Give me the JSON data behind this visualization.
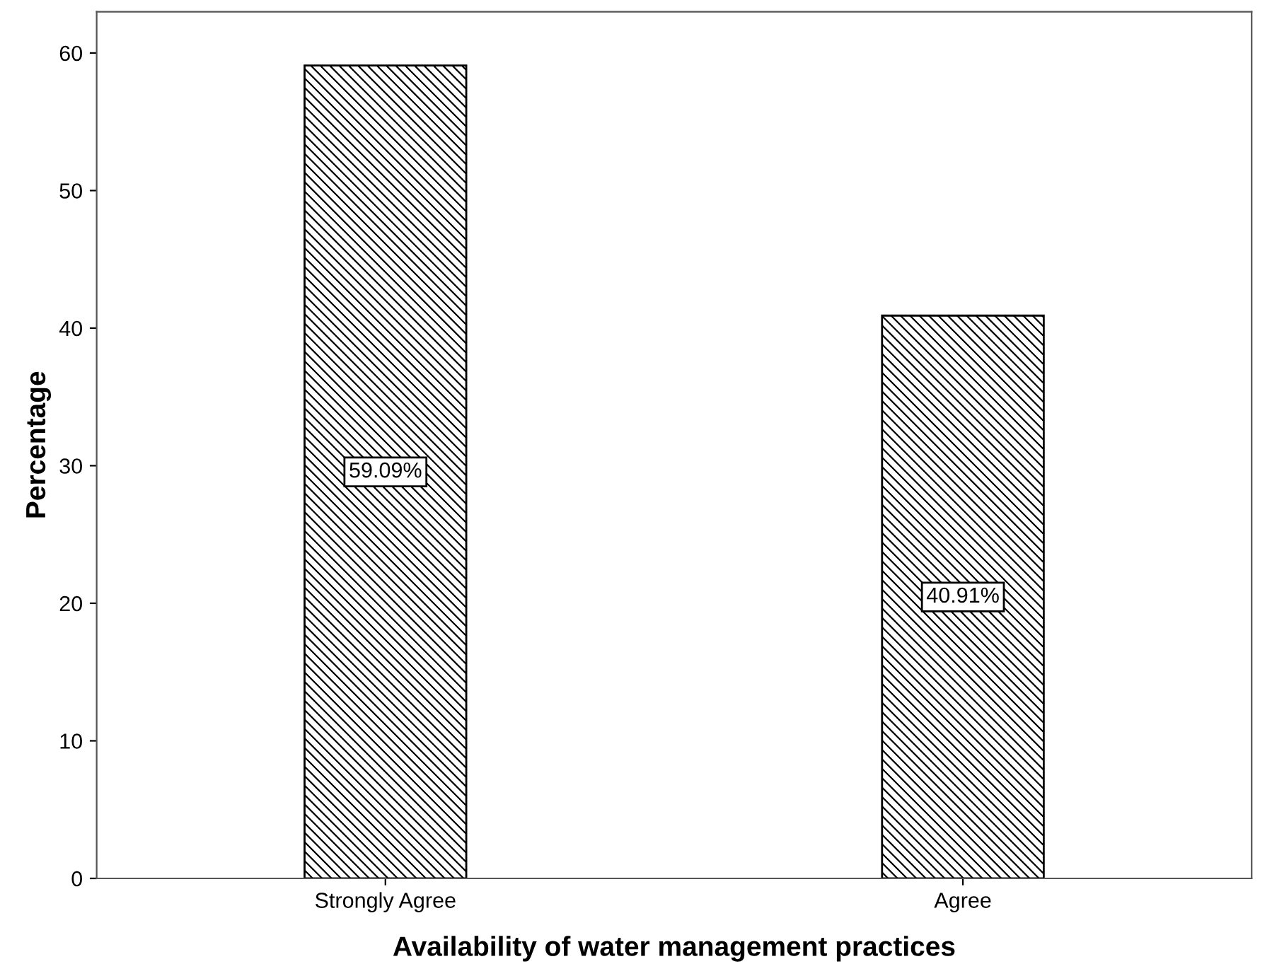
{
  "chart_data": {
    "type": "bar",
    "xlabel": "Availability of water management practices",
    "ylabel": "Percentage",
    "categories": [
      "Strongly Agree",
      "Agree"
    ],
    "values": [
      59.09,
      40.91
    ],
    "value_labels": [
      "59.09%",
      "40.91%"
    ],
    "color": "#000000",
    "ylim": [
      0,
      63
    ],
    "yticks": [
      0,
      10,
      20,
      30,
      40,
      50,
      60
    ],
    "grid": false
  }
}
